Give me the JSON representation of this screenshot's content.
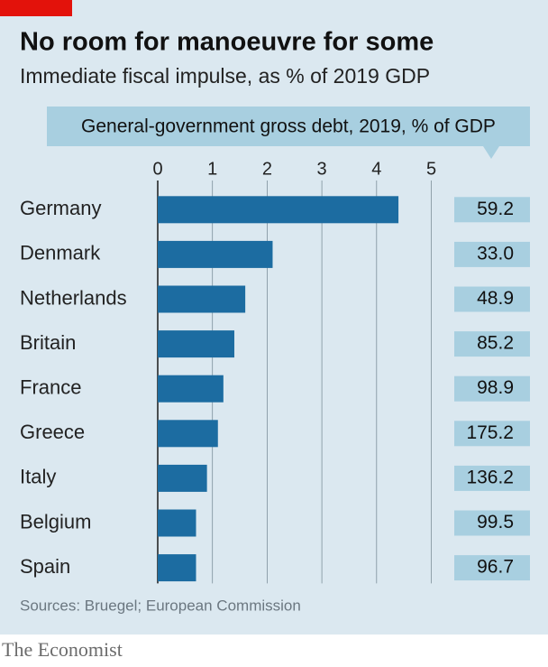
{
  "chart_data": {
    "type": "bar",
    "orientation": "horizontal",
    "title": "No room for manoeuvre for some",
    "subtitle": "Immediate fiscal impulse, as % of 2019 GDP",
    "categories": [
      "Germany",
      "Denmark",
      "Netherlands",
      "Britain",
      "France",
      "Greece",
      "Italy",
      "Belgium",
      "Spain"
    ],
    "values": [
      4.4,
      2.1,
      1.6,
      1.4,
      1.2,
      1.1,
      0.9,
      0.7,
      0.7
    ],
    "color": "#1c6ca1",
    "xlim": [
      0,
      5
    ],
    "xticks": [
      0,
      1,
      2,
      3,
      4,
      5
    ],
    "grid": true,
    "debt": {
      "title": "General-government gross debt, 2019, % of GDP",
      "values": [
        59.2,
        33,
        48.9,
        85.2,
        98.9,
        175.2,
        136.2,
        99.5,
        96.7
      ],
      "value_labels": [
        "59.2",
        "33.0",
        "48.9",
        "85.2",
        "98.9",
        "175.2",
        "136.2",
        "99.5",
        "96.7"
      ],
      "color": "#a8cfe0"
    },
    "source": "Sources: Bruegel; European Commission",
    "publisher": "The Economist"
  }
}
